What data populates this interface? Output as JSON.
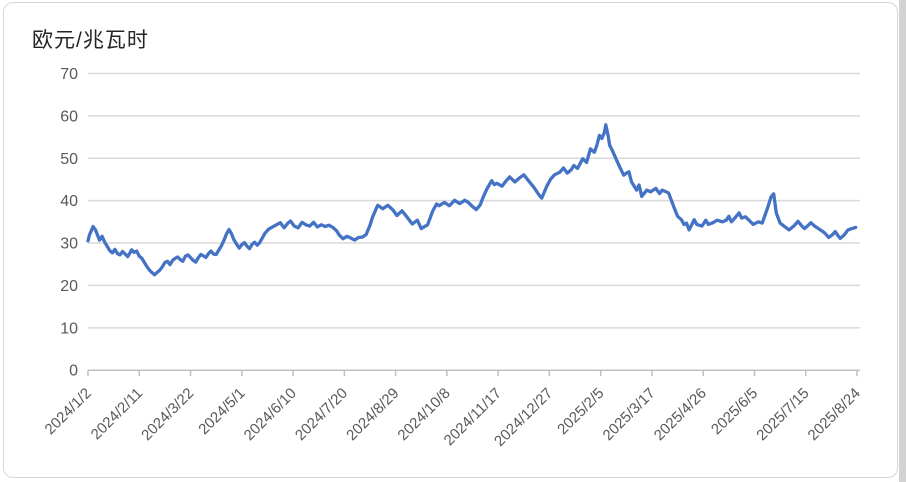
{
  "chart_data": {
    "type": "line",
    "title": "欧元/兆瓦时",
    "xlabel": "",
    "ylabel": "欧元/兆瓦时",
    "ylim": [
      0,
      70
    ],
    "y_ticks": [
      0,
      10,
      20,
      30,
      40,
      50,
      60,
      70
    ],
    "grid": "horizontal",
    "legend": "none",
    "x_tick_labels": [
      "2024/1/2",
      "2024/2/11",
      "2024/3/22",
      "2024/5/1",
      "2024/6/10",
      "2024/7/20",
      "2024/8/29",
      "2024/10/8",
      "2024/11/17",
      "2024/12/27",
      "2025/2/5",
      "2025/3/17",
      "2025/4/26",
      "2025/6/5",
      "2025/7/15",
      "2025/8/24"
    ],
    "x_tick_interval_days": 40,
    "x_span_days": 600,
    "series_name": "欧元/兆瓦时",
    "series_color": "#4472C4",
    "grid_color": "#d9d9d9",
    "axis_color": "#bfbfbf",
    "label_color": "#595959",
    "points": [
      [
        0,
        30.5
      ],
      [
        1,
        31.8
      ],
      [
        3,
        33.2
      ],
      [
        4,
        33.9
      ],
      [
        6,
        33.0
      ],
      [
        8,
        31.4
      ],
      [
        9,
        30.7
      ],
      [
        11,
        31.6
      ],
      [
        13,
        30.2
      ],
      [
        15,
        29.2
      ],
      [
        17,
        28.2
      ],
      [
        19,
        27.7
      ],
      [
        21,
        28.5
      ],
      [
        23,
        27.5
      ],
      [
        25,
        27.2
      ],
      [
        27,
        28.0
      ],
      [
        29,
        27.4
      ],
      [
        31,
        26.8
      ],
      [
        33,
        27.8
      ],
      [
        34,
        28.4
      ],
      [
        36,
        27.8
      ],
      [
        38,
        28.1
      ],
      [
        40,
        26.9
      ],
      [
        42,
        26.4
      ],
      [
        44,
        25.4
      ],
      [
        46,
        24.4
      ],
      [
        48,
        23.6
      ],
      [
        50,
        23.0
      ],
      [
        52,
        22.5
      ],
      [
        54,
        23.1
      ],
      [
        56,
        23.6
      ],
      [
        58,
        24.4
      ],
      [
        60,
        25.4
      ],
      [
        62,
        25.7
      ],
      [
        64,
        24.9
      ],
      [
        66,
        25.9
      ],
      [
        68,
        26.4
      ],
      [
        70,
        26.7
      ],
      [
        72,
        26.1
      ],
      [
        74,
        25.7
      ],
      [
        76,
        26.9
      ],
      [
        78,
        27.2
      ],
      [
        80,
        26.6
      ],
      [
        82,
        25.9
      ],
      [
        84,
        25.5
      ],
      [
        86,
        26.5
      ],
      [
        88,
        27.3
      ],
      [
        90,
        27.0
      ],
      [
        92,
        26.6
      ],
      [
        94,
        27.5
      ],
      [
        96,
        28.1
      ],
      [
        98,
        27.4
      ],
      [
        100,
        27.3
      ],
      [
        102,
        28.3
      ],
      [
        104,
        29.3
      ],
      [
        106,
        30.6
      ],
      [
        108,
        32.1
      ],
      [
        110,
        33.2
      ],
      [
        112,
        32.2
      ],
      [
        114,
        30.7
      ],
      [
        116,
        29.7
      ],
      [
        118,
        28.8
      ],
      [
        120,
        29.6
      ],
      [
        122,
        30.1
      ],
      [
        124,
        29.3
      ],
      [
        126,
        28.7
      ],
      [
        128,
        29.7
      ],
      [
        130,
        30.2
      ],
      [
        132,
        29.5
      ],
      [
        134,
        30.1
      ],
      [
        136,
        31.2
      ],
      [
        138,
        32.3
      ],
      [
        141,
        33.3
      ],
      [
        144,
        33.8
      ],
      [
        147,
        34.3
      ],
      [
        150,
        34.8
      ],
      [
        153,
        33.6
      ],
      [
        156,
        34.7
      ],
      [
        158,
        35.2
      ],
      [
        161,
        34.0
      ],
      [
        164,
        33.6
      ],
      [
        167,
        34.9
      ],
      [
        170,
        34.3
      ],
      [
        173,
        34.0
      ],
      [
        176,
        34.9
      ],
      [
        179,
        33.8
      ],
      [
        182,
        34.3
      ],
      [
        185,
        33.9
      ],
      [
        188,
        34.2
      ],
      [
        191,
        33.7
      ],
      [
        194,
        32.9
      ],
      [
        196,
        31.9
      ],
      [
        199,
        31.0
      ],
      [
        202,
        31.6
      ],
      [
        205,
        31.2
      ],
      [
        208,
        30.7
      ],
      [
        211,
        31.3
      ],
      [
        214,
        31.4
      ],
      [
        217,
        32.0
      ],
      [
        220,
        34.2
      ],
      [
        222,
        36.1
      ],
      [
        226,
        38.9
      ],
      [
        230,
        38.1
      ],
      [
        234,
        38.9
      ],
      [
        238,
        37.8
      ],
      [
        241,
        36.5
      ],
      [
        245,
        37.6
      ],
      [
        249,
        36.1
      ],
      [
        253,
        34.5
      ],
      [
        257,
        35.4
      ],
      [
        260,
        33.4
      ],
      [
        265,
        34.3
      ],
      [
        269,
        37.6
      ],
      [
        272,
        39.2
      ],
      [
        274,
        38.8
      ],
      [
        278,
        39.6
      ],
      [
        282,
        38.8
      ],
      [
        286,
        40.1
      ],
      [
        290,
        39.3
      ],
      [
        294,
        40.1
      ],
      [
        297,
        39.5
      ],
      [
        300,
        38.6
      ],
      [
        303,
        37.9
      ],
      [
        306,
        39.0
      ],
      [
        308,
        40.6
      ],
      [
        311,
        42.6
      ],
      [
        315,
        44.7
      ],
      [
        317,
        43.8
      ],
      [
        319,
        44.1
      ],
      [
        323,
        43.4
      ],
      [
        326,
        44.6
      ],
      [
        329,
        45.6
      ],
      [
        333,
        44.4
      ],
      [
        336,
        45.2
      ],
      [
        340,
        46.1
      ],
      [
        344,
        44.6
      ],
      [
        348,
        43.1
      ],
      [
        352,
        41.3
      ],
      [
        354,
        40.6
      ],
      [
        358,
        43.4
      ],
      [
        361,
        45.1
      ],
      [
        364,
        46.1
      ],
      [
        368,
        46.7
      ],
      [
        371,
        47.7
      ],
      [
        374,
        46.5
      ],
      [
        377,
        47.3
      ],
      [
        379,
        48.3
      ],
      [
        382,
        47.6
      ],
      [
        386,
        49.9
      ],
      [
        389,
        49.0
      ],
      [
        392,
        52.2
      ],
      [
        395,
        51.4
      ],
      [
        397,
        53.0
      ],
      [
        399,
        55.4
      ],
      [
        401,
        54.7
      ],
      [
        403,
        56.2
      ],
      [
        404,
        57.9
      ],
      [
        406,
        55.0
      ],
      [
        407,
        53.1
      ],
      [
        409,
        51.9
      ],
      [
        413,
        49.2
      ],
      [
        416,
        47.2
      ],
      [
        418,
        46.0
      ],
      [
        420,
        46.5
      ],
      [
        422,
        46.8
      ],
      [
        424,
        44.5
      ],
      [
        428,
        42.5
      ],
      [
        430,
        43.7
      ],
      [
        432,
        41.0
      ],
      [
        436,
        42.5
      ],
      [
        439,
        42.1
      ],
      [
        443,
        42.9
      ],
      [
        446,
        41.7
      ],
      [
        448,
        42.5
      ],
      [
        451,
        42.1
      ],
      [
        453,
        41.8
      ],
      [
        457,
        38.6
      ],
      [
        460,
        36.3
      ],
      [
        463,
        35.5
      ],
      [
        465,
        34.4
      ],
      [
        467,
        34.7
      ],
      [
        469,
        33.1
      ],
      [
        473,
        35.5
      ],
      [
        475,
        34.4
      ],
      [
        479,
        34.0
      ],
      [
        482,
        35.4
      ],
      [
        484,
        34.4
      ],
      [
        487,
        34.7
      ],
      [
        491,
        35.4
      ],
      [
        495,
        35.0
      ],
      [
        498,
        35.4
      ],
      [
        500,
        36.3
      ],
      [
        502,
        35.0
      ],
      [
        505,
        36.0
      ],
      [
        508,
        37.1
      ],
      [
        510,
        35.9
      ],
      [
        513,
        36.2
      ],
      [
        517,
        35.0
      ],
      [
        519,
        34.4
      ],
      [
        523,
        35.0
      ],
      [
        526,
        34.7
      ],
      [
        530,
        38.1
      ],
      [
        533,
        40.9
      ],
      [
        535,
        41.6
      ],
      [
        537,
        37.1
      ],
      [
        540,
        34.7
      ],
      [
        543,
        34.0
      ],
      [
        547,
        33.1
      ],
      [
        551,
        34.1
      ],
      [
        554,
        35.1
      ],
      [
        557,
        34.0
      ],
      [
        559,
        33.4
      ],
      [
        562,
        34.2
      ],
      [
        564,
        34.8
      ],
      [
        567,
        34.0
      ],
      [
        570,
        33.4
      ],
      [
        573,
        32.8
      ],
      [
        575,
        32.3
      ],
      [
        578,
        31.3
      ],
      [
        581,
        32.0
      ],
      [
        583,
        32.7
      ],
      [
        585,
        31.8
      ],
      [
        587,
        31.1
      ],
      [
        590,
        31.9
      ],
      [
        593,
        33.1
      ],
      [
        596,
        33.4
      ],
      [
        599,
        33.7
      ]
    ]
  }
}
